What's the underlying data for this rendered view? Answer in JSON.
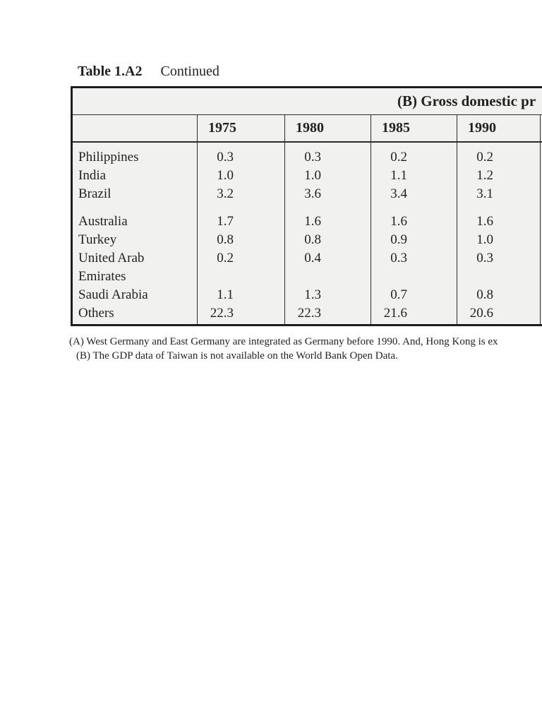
{
  "caption": {
    "number": "Table 1.A2",
    "text": "Continued"
  },
  "table": {
    "panel_header": "(B) Gross domestic pr",
    "columns": [
      "1975",
      "1980",
      "1985",
      "1990"
    ],
    "rows": [
      {
        "type": "data",
        "label": "Philippines",
        "values": [
          "0.3",
          "0.3",
          "0.2",
          "0.2"
        ]
      },
      {
        "type": "data",
        "label": "India",
        "values": [
          "1.0",
          "1.0",
          "1.1",
          "1.2"
        ]
      },
      {
        "type": "data",
        "label": "Brazil",
        "values": [
          "3.2",
          "3.6",
          "3.4",
          "3.1"
        ]
      },
      {
        "type": "gap"
      },
      {
        "type": "data",
        "label": "Australia",
        "values": [
          "1.7",
          "1.6",
          "1.6",
          "1.6"
        ]
      },
      {
        "type": "data",
        "label": "Turkey",
        "values": [
          "0.8",
          "0.8",
          "0.9",
          "1.0"
        ]
      },
      {
        "type": "data",
        "label": "United Arab",
        "values": [
          "0.2",
          "0.4",
          "0.3",
          "0.3"
        ]
      },
      {
        "type": "data",
        "label": "Emirates",
        "values": [
          "",
          "",
          "",
          ""
        ]
      },
      {
        "type": "data",
        "label": "Saudi Arabia",
        "values": [
          "1.1",
          "1.3",
          "0.7",
          "0.8"
        ]
      },
      {
        "type": "data",
        "label": "Others",
        "values": [
          "22.3",
          "22.3",
          "21.6",
          "20.6"
        ]
      }
    ]
  },
  "footnotes": {
    "a": "(A) West Germany and East Germany are integrated as Germany before 1990. And, Hong Kong is ex",
    "b": "(B) The GDP data of Taiwan is not available on the World Bank Open Data."
  },
  "colors": {
    "page_bg": "#ffffff",
    "table_bg": "#f1f1ef",
    "ink": "#231f20",
    "rule": "#2e2a2b"
  }
}
